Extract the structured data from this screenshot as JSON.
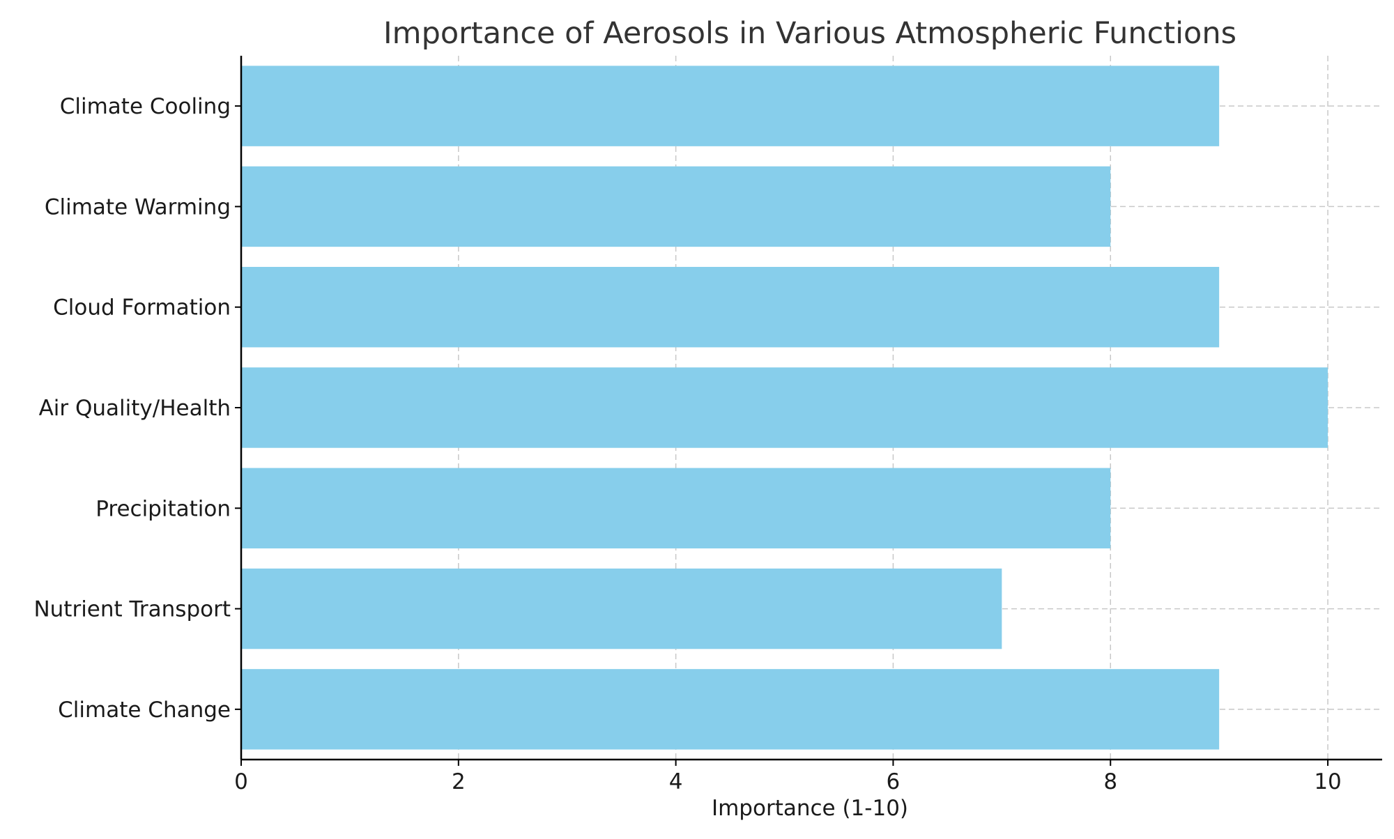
{
  "chart_data": {
    "type": "bar",
    "orientation": "horizontal",
    "title": "Importance of Aerosols in Various Atmospheric Functions",
    "xlabel": "Importance (1-10)",
    "ylabel": "",
    "categories": [
      "Climate Change",
      "Nutrient Transport",
      "Precipitation",
      "Air Quality/Health",
      "Cloud Formation",
      "Climate Warming",
      "Climate Cooling"
    ],
    "values": [
      9,
      7,
      8,
      10,
      9,
      8,
      9
    ],
    "xlim": [
      0,
      10.5
    ],
    "xticks": [
      0,
      2,
      4,
      6,
      8,
      10
    ],
    "grid": true,
    "bar_color": "#87ceeb"
  }
}
